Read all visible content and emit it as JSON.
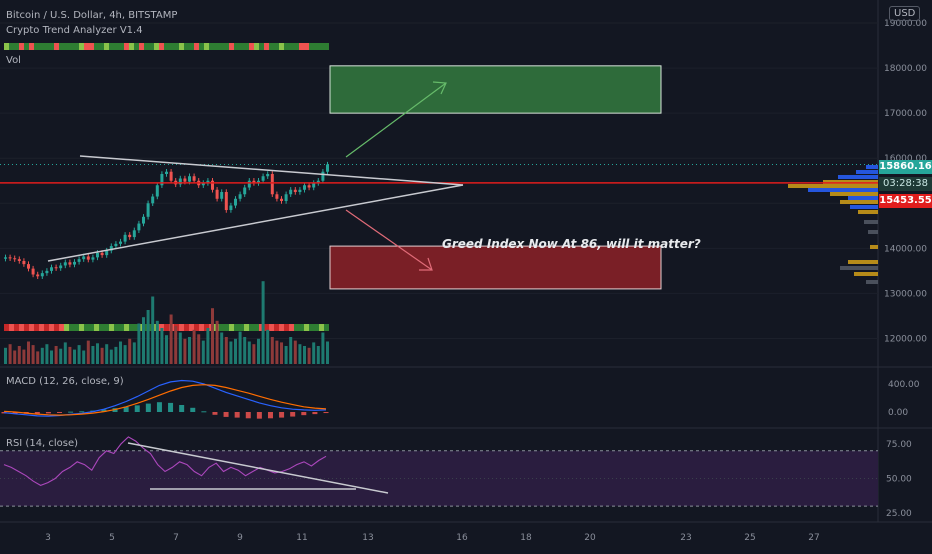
{
  "header": {
    "symbol": "Bitcoin / U.S. Dollar, 4h, BITSTAMP",
    "indicator": "Crypto Trend Analyzer V1.4",
    "vol_label": "Vol",
    "currency": "USD"
  },
  "annotation": "Greed Index Now At 86, will it matter?",
  "price_labels": {
    "last_price": "15860.16",
    "countdown": "03:28:38",
    "level_price": "15453.55"
  },
  "macd_label": "MACD (12, 26, close, 9)",
  "rsi_label": "RSI (14, close)",
  "colors": {
    "background": "#131722",
    "up": "#26a69a",
    "down": "#ef5350",
    "level_line": "#e11d1d",
    "target_up": "#2e6b3a",
    "target_down": "#7a1f26",
    "rsi_band": "#2a1d3f",
    "macd_line": "#2962ff",
    "signal_line": "#ff6d00",
    "rsi_line": "#ab47bc"
  },
  "chart_data": [
    {
      "type": "candlestick",
      "title": "Bitcoin / U.S. Dollar, 4h, BITSTAMP",
      "x_ticks": [
        "3",
        "5",
        "7",
        "9",
        "11",
        "13",
        "16",
        "18",
        "20",
        "23",
        "25",
        "27"
      ],
      "y_ticks": [
        12000,
        13000,
        14000,
        15000,
        16000,
        17000,
        18000,
        19000
      ],
      "y_range": [
        11700,
        19200
      ],
      "last_price": 15860.16,
      "horizontal_level": 15453.55,
      "targets": {
        "up_zone": [
          17000,
          18050
        ],
        "down_zone": [
          13100,
          14050
        ]
      },
      "closes": [
        13800,
        13780,
        13760,
        13720,
        13650,
        13550,
        13420,
        13380,
        13450,
        13500,
        13580,
        13560,
        13620,
        13690,
        13640,
        13700,
        13760,
        13820,
        13750,
        13800,
        13900,
        13850,
        13950,
        14050,
        14100,
        14150,
        14300,
        14250,
        14400,
        14550,
        14700,
        15000,
        15150,
        15400,
        15650,
        15700,
        15500,
        15420,
        15550,
        15480,
        15600,
        15500,
        15400,
        15450,
        15500,
        15300,
        15100,
        15250,
        14850,
        14950,
        15100,
        15200,
        15350,
        15500,
        15450,
        15500,
        15600,
        15650,
        15200,
        15100,
        15050,
        15200,
        15300,
        15250,
        15300,
        15400,
        15350,
        15450,
        15500,
        15700,
        15860
      ]
    },
    {
      "type": "bar",
      "title": "Vol",
      "values": [
        18,
        22,
        15,
        20,
        16,
        25,
        21,
        14,
        18,
        22,
        15,
        20,
        17,
        24,
        19,
        16,
        21,
        15,
        26,
        20,
        23,
        18,
        22,
        16,
        19,
        25,
        21,
        28,
        24,
        45,
        52,
        60,
        75,
        48,
        40,
        32,
        55,
        42,
        35,
        28,
        30,
        38,
        33,
        26,
        40,
        62,
        48,
        35,
        30,
        25,
        28,
        36,
        30,
        25,
        22,
        28,
        92,
        38,
        30,
        26,
        24,
        20,
        30,
        26,
        22,
        20,
        18,
        24,
        20,
        35,
        25
      ]
    },
    {
      "type": "line",
      "title": "MACD (12, 26, close, 9)",
      "y_ticks": [
        0,
        400
      ],
      "series": [
        {
          "name": "MACD",
          "values": [
            -10,
            -25,
            -40,
            -55,
            -60,
            -50,
            -35,
            -20,
            5,
            40,
            90,
            150,
            220,
            300,
            380,
            430,
            450,
            440,
            400,
            340,
            280,
            230,
            180,
            130,
            90,
            60,
            40,
            30,
            25,
            30
          ]
        },
        {
          "name": "Signal",
          "values": [
            10,
            0,
            -15,
            -30,
            -40,
            -45,
            -40,
            -30,
            -15,
            5,
            35,
            75,
            125,
            180,
            240,
            300,
            350,
            380,
            390,
            380,
            350,
            310,
            270,
            225,
            180,
            140,
            105,
            75,
            55,
            45
          ]
        }
      ],
      "histogram": [
        -20,
        -25,
        -25,
        -25,
        -20,
        -5,
        5,
        10,
        20,
        35,
        55,
        75,
        95,
        120,
        140,
        130,
        100,
        60,
        10,
        -40,
        -70,
        -80,
        -90,
        -95,
        -90,
        -80,
        -65,
        -45,
        -30,
        -15
      ]
    },
    {
      "type": "line",
      "title": "RSI (14, close)",
      "y_ticks": [
        25,
        50,
        75
      ],
      "bands": [
        30,
        70
      ],
      "values": [
        60,
        58,
        55,
        52,
        48,
        45,
        47,
        50,
        55,
        58,
        62,
        60,
        56,
        65,
        70,
        68,
        75,
        80,
        77,
        72,
        68,
        60,
        55,
        58,
        62,
        60,
        55,
        52,
        58,
        61,
        55,
        58,
        56,
        52,
        55,
        58,
        56,
        54,
        55,
        57,
        60,
        62,
        59,
        63,
        66
      ]
    }
  ]
}
